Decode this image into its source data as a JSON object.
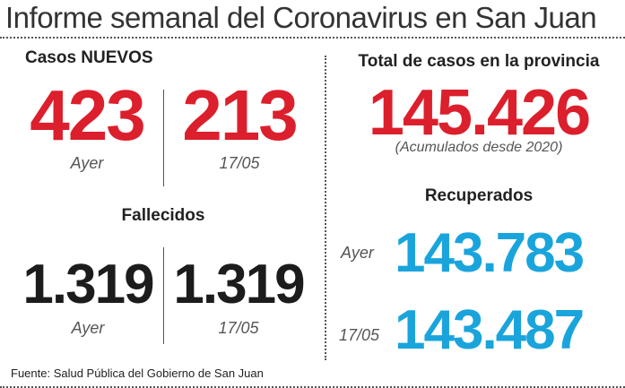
{
  "title": "Informe semanal del Coronavirus en San Juan",
  "casos_nuevos": {
    "heading": "Casos NUEVOS",
    "ayer_value": "423",
    "ayer_label": "Ayer",
    "previo_value": "213",
    "previo_label": "17/05"
  },
  "fallecidos": {
    "heading": "Fallecidos",
    "ayer_value": "1.319",
    "ayer_label": "Ayer",
    "previo_value": "1.319",
    "previo_label": "17/05"
  },
  "total": {
    "heading": "Total de casos en la provincia",
    "value": "145.426",
    "note": "(Acumulados desde 2020)"
  },
  "recuperados": {
    "heading": "Recuperados",
    "ayer_label": "Ayer",
    "ayer_value": "143.783",
    "previo_label": "17/05",
    "previo_value": "143.487"
  },
  "footer": "Fuente: Salud Pública del Gobierno de San Juan",
  "colors": {
    "red": "#dc1f2c",
    "blue": "#1aa4dc",
    "black": "#1c1c1c"
  }
}
